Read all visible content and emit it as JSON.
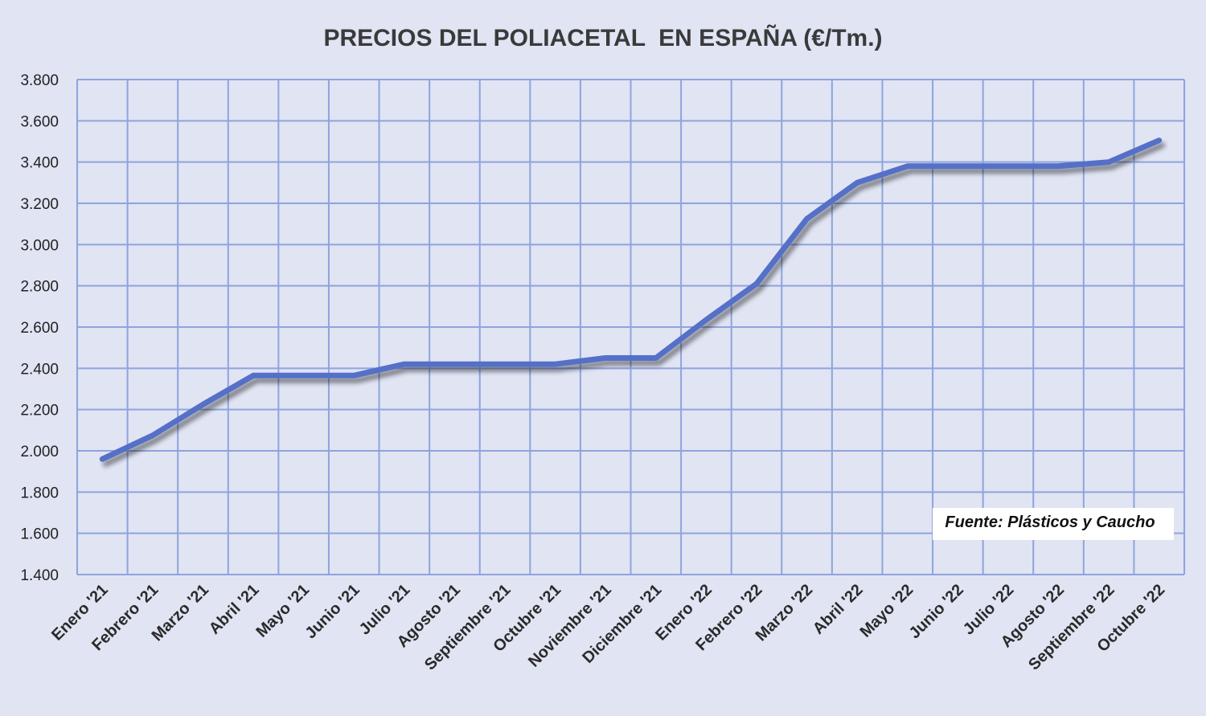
{
  "chart_data": {
    "type": "line",
    "title": "PRECIOS DEL POLIACETAL  EN ESPAÑA (€/Tm.)",
    "source": "Fuente: Plásticos y Caucho",
    "xlabel": "",
    "ylabel": "",
    "ylim": [
      1400,
      3800
    ],
    "ystep": 200,
    "grid": true,
    "y_tick_labels": [
      "1.400",
      "1.600",
      "1.800",
      "2.000",
      "2.200",
      "2.400",
      "2.600",
      "2.800",
      "3.000",
      "3.200",
      "3.400",
      "3.600",
      "3.800"
    ],
    "categories": [
      "Enero '21",
      "Febrero '21",
      "Marzo '21",
      "Abril '21",
      "Mayo '21",
      "Junio '21",
      "Julio '21",
      "Agosto '21",
      "Septiembre '21",
      "Octubre '21",
      "Noviembre '21",
      "Diciembre '21",
      "Enero '22",
      "Febrero '22",
      "Marzo '22",
      "Abril '22",
      "Mayo '22",
      "Junio '22",
      "Julio '22",
      "Agosto '22",
      "Septiembre '22",
      "Octubre '22"
    ],
    "series": [
      {
        "name": "Poliacetal",
        "color": "#5470c6",
        "values": [
          1960,
          2075,
          2225,
          2365,
          2365,
          2365,
          2420,
          2420,
          2420,
          2420,
          2450,
          2450,
          2635,
          2810,
          3125,
          3300,
          3380,
          3380,
          3380,
          3380,
          3400,
          3505
        ]
      }
    ]
  },
  "colors": {
    "background": "#e0e4f3",
    "grid": "#8ea4dc",
    "line": "#5470c6",
    "shadow": "#8a8a9a"
  }
}
